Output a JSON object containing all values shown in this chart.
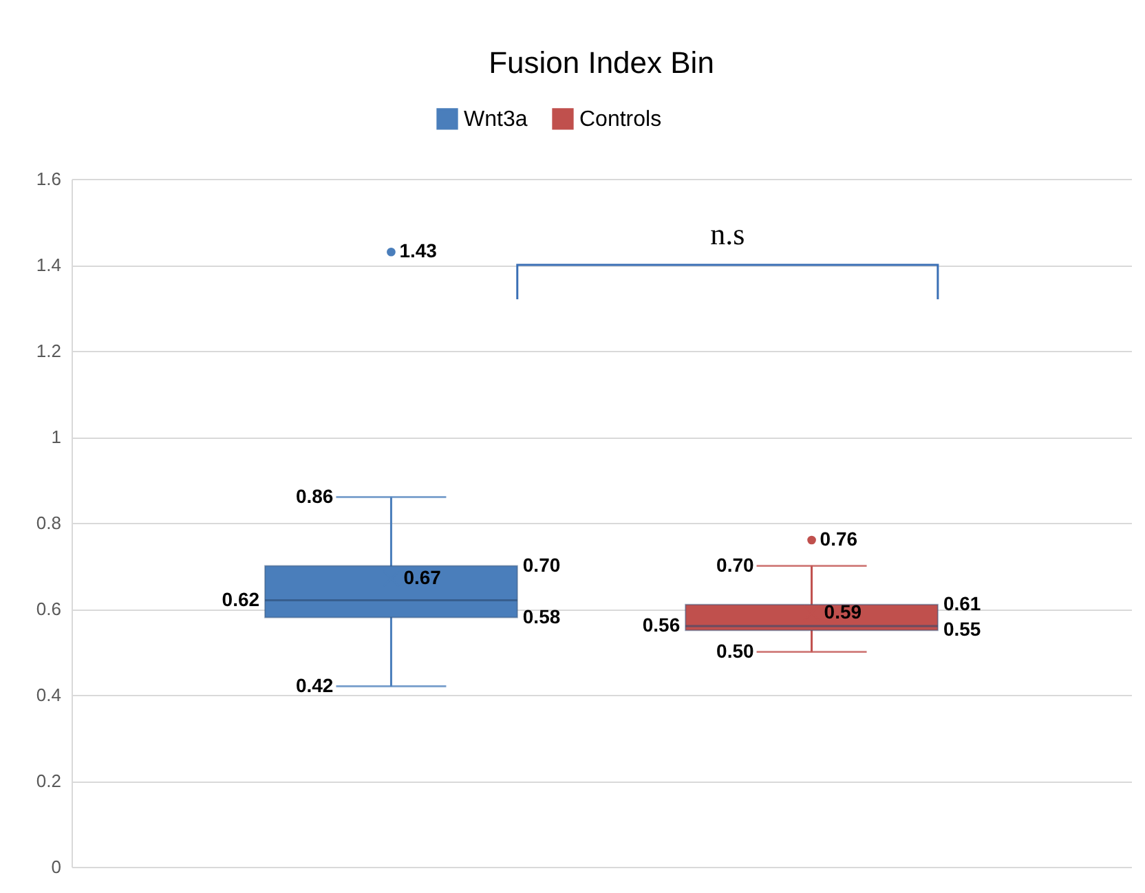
{
  "chart_data": {
    "type": "box",
    "title": "Fusion Index Bin",
    "categories": [
      null
    ],
    "series": [
      {
        "name": "Wnt3a",
        "color": "#4a7ebb",
        "boxes": [
          {
            "low": 0.42,
            "q1": 0.58,
            "median": 0.62,
            "q3": 0.7,
            "high": 0.86,
            "mean": 0.67,
            "outliers": [
              1.43
            ]
          }
        ]
      },
      {
        "name": "Controls",
        "color": "#c0504d",
        "boxes": [
          {
            "low": 0.5,
            "q1": 0.55,
            "median": 0.56,
            "q3": 0.61,
            "high": 0.7,
            "mean": 0.59,
            "outliers": [
              0.76
            ]
          }
        ]
      }
    ],
    "ylim": [
      0,
      1.6
    ],
    "yticks": [
      0,
      0.2,
      0.4,
      0.6,
      0.8,
      1,
      1.2,
      1.4,
      1.6
    ],
    "grid": "y",
    "legend": "top",
    "annotations": [
      "n.s",
      "0.42",
      "0.58",
      "0.62",
      "0.70",
      "0.86",
      "0.67",
      "1.43",
      "0.50",
      "0.55",
      "0.56",
      "0.61",
      "0.70",
      "0.59",
      "0.76"
    ]
  }
}
